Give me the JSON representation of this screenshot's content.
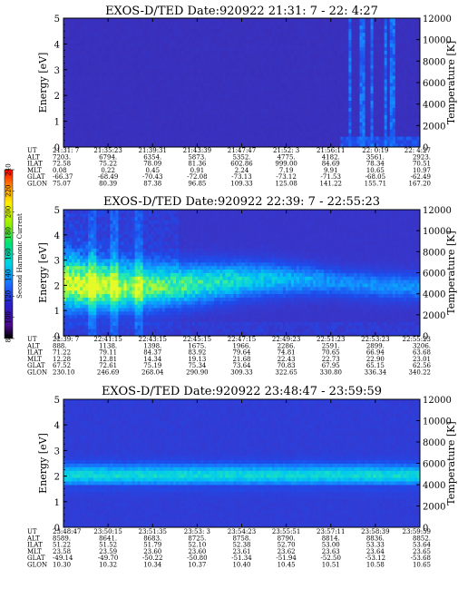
{
  "colorbar": {
    "label": "Second Harmonic Current",
    "ticks": [
      "80",
      "100",
      "120",
      "140",
      "160",
      "180",
      "200",
      "220",
      "240"
    ]
  },
  "row_labels": [
    "UT",
    "ALT",
    "ILAT",
    "MLT",
    "GLAT",
    "GLON"
  ],
  "chart_data": [
    {
      "type": "heatmap",
      "title": "EXOS-D/TED   Date:920922  21:31: 7 - 22: 4:27",
      "ylabel": "Energy [eV]",
      "y2label": "Temperature [K]",
      "ylim": [
        0,
        5
      ],
      "y_ticks": [
        "0",
        "1",
        "2",
        "3",
        "4",
        "5"
      ],
      "y2lim": [
        0,
        12000
      ],
      "y2_ticks": [
        "0",
        "2000",
        "4000",
        "6000",
        "8000",
        "10000",
        "12000"
      ],
      "ephemeris": {
        "UT": [
          "21:31: 7",
          "21:35:23",
          "21:39:31",
          "21:43:39",
          "21:47:47",
          "21:52: 3",
          "21:56:11",
          "22: 0:19",
          "22: 4:27"
        ],
        "ALT": [
          "7203.",
          "6794.",
          "6354.",
          "5873.",
          "5352.",
          "4775.",
          "4182.",
          "3561.",
          "2923."
        ],
        "ILAT": [
          "72.58",
          "75.22",
          "78.09",
          "81.36",
          "602.86",
          "999.00",
          "84.69",
          "78.34",
          "70.51"
        ],
        "MLT": [
          "0.08",
          "0.22",
          "0.45",
          "0.91",
          "2.24",
          "7.19",
          "9.91",
          "10.65",
          "10.97"
        ],
        "GLAT": [
          "-66.37",
          "-68.49",
          "-70.43",
          "-72.08",
          "-73.13",
          "-73.12",
          "-71.53",
          "-68.05",
          "-62.49"
        ],
        "GLON": [
          "75.07",
          "80.39",
          "87.38",
          "96.85",
          "109.33",
          "125.08",
          "141.22",
          "155.71",
          "167.20"
        ]
      },
      "pattern": "faint-background-with-late-vertical-streaks"
    },
    {
      "type": "heatmap",
      "title": "EXOS-D/TED   Date:920922  22:39: 7 - 22:55:23",
      "ylabel": "Energy [eV]",
      "y2label": "Temperature [K]",
      "ylim": [
        0,
        5
      ],
      "y_ticks": [
        "0",
        "1",
        "2",
        "3",
        "4",
        "5"
      ],
      "y2lim": [
        0,
        12000
      ],
      "y2_ticks": [
        "0",
        "2000",
        "4000",
        "6000",
        "8000",
        "10000",
        "12000"
      ],
      "ephemeris": {
        "UT": [
          "22:39: 7",
          "22:41:15",
          "22:43:15",
          "22:45:15",
          "22:47:15",
          "22:49:23",
          "22:51:23",
          "22:53:23",
          "22:55:23"
        ],
        "ALT": [
          "888.",
          "1138.",
          "1398.",
          "1675.",
          "1966.",
          "2286.",
          "2591.",
          "2899.",
          "3206."
        ],
        "ILAT": [
          "71.22",
          "79.11",
          "84.37",
          "83.92",
          "79.64",
          "74.81",
          "70.65",
          "66.94",
          "63.68"
        ],
        "MLT": [
          "12.28",
          "12.81",
          "14.34",
          "19.13",
          "21.68",
          "22.43",
          "22.73",
          "22.90",
          "23.01"
        ],
        "GLAT": [
          "67.52",
          "72.61",
          "75.19",
          "75.34",
          "73.64",
          "70.83",
          "67.95",
          "65.15",
          "62.56"
        ],
        "GLON": [
          "230.10",
          "246.69",
          "268.04",
          "290.90",
          "309.33",
          "322.65",
          "330.80",
          "336.34",
          "340.22"
        ]
      },
      "pattern": "broad-band-2eV-fading-with-time"
    },
    {
      "type": "heatmap",
      "title": "EXOS-D/TED   Date:920922  23:48:47 - 23:59:59",
      "ylabel": "Energy [eV]",
      "y2label": "Temperature [K]",
      "ylim": [
        0,
        5
      ],
      "y_ticks": [
        "0",
        "1",
        "2",
        "3",
        "4",
        "5"
      ],
      "y2lim": [
        0,
        12000
      ],
      "y2_ticks": [
        "0",
        "2000",
        "4000",
        "6000",
        "8000",
        "10000",
        "12000"
      ],
      "ephemeris": {
        "UT": [
          "23:48:47",
          "23:50:15",
          "23:51:35",
          "23:53: 3",
          "23:54:23",
          "23:55:51",
          "23:57:11",
          "23:58:39",
          "23:59:59"
        ],
        "ALT": [
          "8589.",
          "8641.",
          "8683.",
          "8725.",
          "8758.",
          "8790.",
          "8814.",
          "8836.",
          "8852."
        ],
        "ILAT": [
          "51.22",
          "51.52",
          "51.79",
          "52.10",
          "52.38",
          "52.70",
          "53.00",
          "53.33",
          "53.64"
        ],
        "MLT": [
          "23.58",
          "23.59",
          "23.60",
          "23.60",
          "23.61",
          "23.62",
          "23.63",
          "23.64",
          "23.65"
        ],
        "GLAT": [
          "-49.14",
          "-49.70",
          "-50.22",
          "-50.80",
          "-51.34",
          "-51.94",
          "-52.50",
          "-53.12",
          "-53.68"
        ],
        "GLON": [
          "10.30",
          "10.32",
          "10.34",
          "10.37",
          "10.40",
          "10.45",
          "10.51",
          "10.58",
          "10.65"
        ]
      },
      "pattern": "steady-band-2eV"
    }
  ]
}
